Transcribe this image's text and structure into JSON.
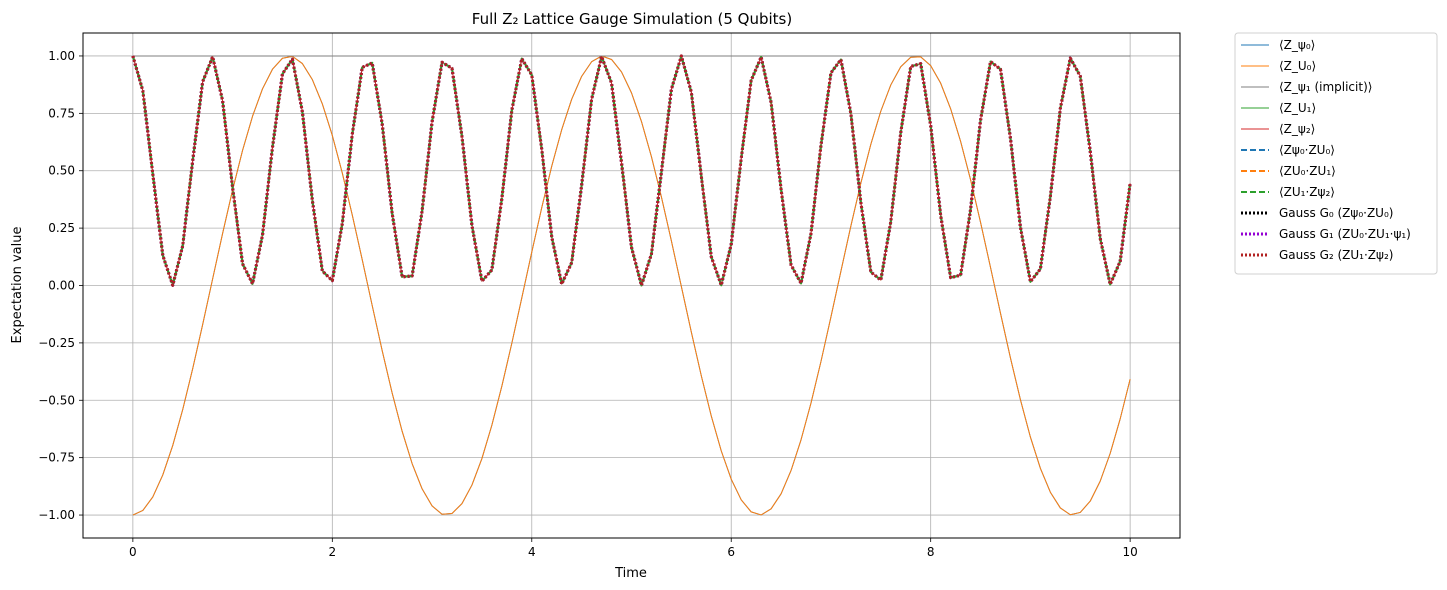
{
  "chart_data": {
    "type": "line",
    "title": "Full Z₂ Lattice Gauge Simulation (5 Qubits)",
    "xlabel": "Time",
    "ylabel": "Expectation value",
    "xlim": [
      -0.5,
      10.5
    ],
    "ylim": [
      -1.1,
      1.1
    ],
    "xticks": [
      0,
      2,
      4,
      6,
      8,
      10
    ],
    "yticks": [
      -1.0,
      -0.75,
      -0.5,
      -0.25,
      0.0,
      0.25,
      0.5,
      0.75,
      1.0
    ],
    "xtick_labels": [
      "0",
      "2",
      "4",
      "6",
      "8",
      "10"
    ],
    "ytick_labels": [
      "−1.00",
      "−0.75",
      "−0.50",
      "−0.25",
      "0.00",
      "0.25",
      "0.50",
      "0.75",
      "1.00"
    ],
    "grid": true,
    "legend_position": "outside-top-right",
    "x": {
      "start": 0,
      "stop": 10,
      "count": 101
    },
    "series": [
      {
        "name": "⟨Z_ψ₀⟩",
        "color": "#1f77b4",
        "style": "solid",
        "width": 1,
        "formula": "-cos(2t)"
      },
      {
        "name": "⟨Z_U₀⟩",
        "color": "#ff7f0e",
        "style": "solid",
        "width": 1,
        "formula": "-cos(2t)"
      },
      {
        "name": "⟨Z_ψ₁ (implicit)⟩",
        "color": "#7f7f7f",
        "style": "solid",
        "width": 1,
        "formula": "1"
      },
      {
        "name": "⟨Z_U₁⟩",
        "color": "#2ca02c",
        "style": "solid",
        "width": 1,
        "formula": "cos(4t)^2"
      },
      {
        "name": "⟨Z_ψ₂⟩",
        "color": "#d62728",
        "style": "solid",
        "width": 1,
        "formula": "cos(4t)^2"
      },
      {
        "name": "⟨Zψ₀·ZU₀⟩",
        "color": "#1f77b4",
        "style": "dashed",
        "width": 2,
        "formula": "cos(4t)^2"
      },
      {
        "name": "⟨ZU₀·ZU₁⟩",
        "color": "#ff7f0e",
        "style": "dashed",
        "width": 2,
        "formula": "cos(4t)^2"
      },
      {
        "name": "⟨ZU₁·Zψ₂⟩",
        "color": "#2ca02c",
        "style": "dashed",
        "width": 2,
        "formula": "cos(4t)^2"
      },
      {
        "name": "Gauss G₀ (Zψ₀·ZU₀)",
        "color": "#000000",
        "style": "dotted",
        "width": 3,
        "formula": "cos(4t)^2"
      },
      {
        "name": "Gauss G₁ (ZU₀·ZU₁·ψ₁)",
        "color": "#9400d3",
        "style": "dotted",
        "width": 3,
        "formula": "cos(4t)^2"
      },
      {
        "name": "Gauss G₂ (ZU₁·Zψ₂)",
        "color": "#b22222",
        "style": "dotted",
        "width": 3,
        "formula": "cos(4t)^2"
      }
    ]
  }
}
